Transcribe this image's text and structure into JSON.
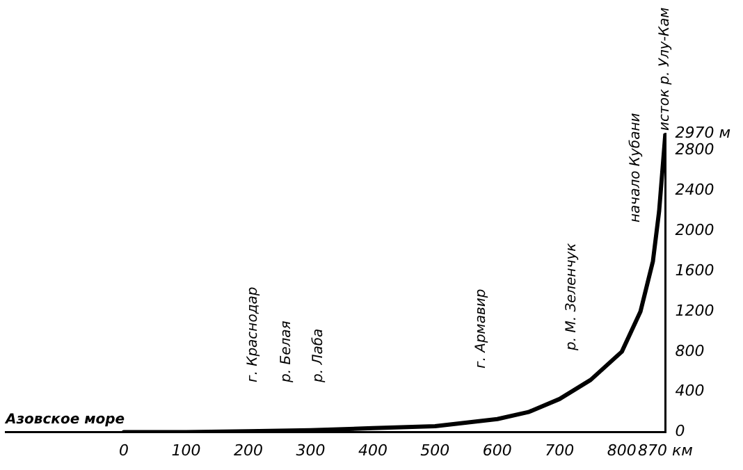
{
  "chart_data": {
    "type": "line",
    "x": [
      0,
      100,
      200,
      300,
      400,
      500,
      600,
      650,
      700,
      750,
      800,
      830,
      850,
      860,
      870
    ],
    "series": [
      {
        "color": "#000000",
        "values": [
          0,
          0,
          10,
          20,
          40,
          60,
          130,
          200,
          330,
          520,
          800,
          1200,
          1700,
          2200,
          2970
        ]
      }
    ],
    "xlim": [
      -190,
      870
    ],
    "xticks": [
      0,
      100,
      200,
      300,
      400,
      500,
      600,
      700,
      800,
      {
        "value": 870,
        "label": "870 км"
      }
    ],
    "ylim": [
      0,
      2970
    ],
    "yticks": [
      0,
      400,
      800,
      1200,
      1600,
      2000,
      2400,
      2800,
      {
        "value": 2970,
        "label": "2970 м"
      }
    ],
    "grid": false,
    "legend": false,
    "marker": "none",
    "line_style": "solid",
    "annotations": [
      "Азовское море",
      "г. Краснодар",
      "р. Белая",
      "р. Лаба",
      "г. Армавир",
      "р. М. Зеленчук",
      "начало Кубани",
      "исток р. Улу-Кам"
    ]
  }
}
